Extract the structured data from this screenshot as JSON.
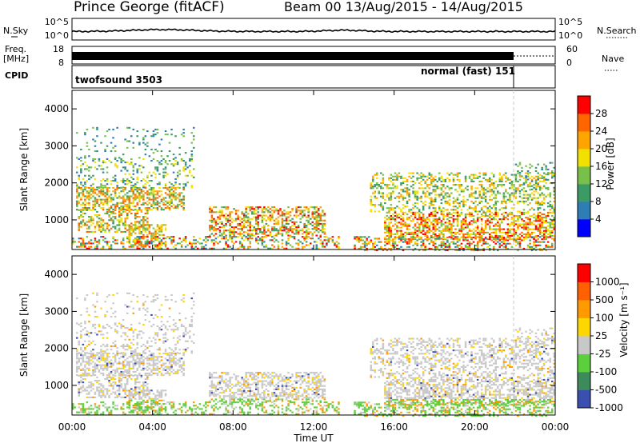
{
  "header": {
    "station": "Prince George (fitACF)",
    "beam_info": "Beam 00  13/Aug/2015 - 14/Aug/2015"
  },
  "strip": {
    "nsky_label": "N.Sky",
    "nsky_ticks": [
      "10^5",
      "10^0"
    ],
    "nsearch_label": "N.Search",
    "nsearch_ticks": [
      "10^5",
      "10^0"
    ],
    "freq_label_1": "Freq.",
    "freq_label_2": "[MHz]",
    "freq_ticks": [
      "18",
      "8"
    ],
    "nave_label": "Nave",
    "nave_ticks": [
      "60",
      "0"
    ],
    "cpid_label": "CPID",
    "cpid_1": "twofsound 3503",
    "cpid_2": "normal (fast) 151"
  },
  "colors": {
    "power": [
      "#0000ff",
      "#2e7db4",
      "#3c9a64",
      "#77c04a",
      "#f2e000",
      "#ffa500",
      "#ff6600",
      "#ff0000"
    ],
    "velocity": [
      "#3b4fb0",
      "#3d8a5a",
      "#5ccf3c",
      "#c8c8c8",
      "#ffd700",
      "#ff9a00",
      "#ff6000",
      "#ff0000"
    ]
  },
  "chart_data": [
    {
      "type": "heatmap",
      "name": "Power",
      "ylabel": "Slant Range [km]",
      "yticks": [
        "4000",
        "3000",
        "2000",
        "1000"
      ],
      "ylim": [
        200,
        4500
      ],
      "xlim": [
        0,
        24
      ],
      "colorbar_label": "Power [dB]",
      "colorbar_ticks": [
        "28",
        "24",
        "20",
        "16",
        "12",
        "8",
        "4"
      ],
      "colorbar_range": [
        0,
        32
      ]
    },
    {
      "type": "heatmap",
      "name": "Velocity",
      "ylabel": "Slant Range [km]",
      "yticks": [
        "4000",
        "3000",
        "2000",
        "1000"
      ],
      "ylim": [
        200,
        4500
      ],
      "xlim": [
        0,
        24
      ],
      "xlabel": "Time UT",
      "xticks": [
        "00:00",
        "04:00",
        "08:00",
        "12:00",
        "16:00",
        "20:00",
        "00:00"
      ],
      "colorbar_label": "Velocity [m s⁻¹]",
      "colorbar_ticks": [
        "1000",
        "500",
        "100",
        "25",
        "-25",
        "-100",
        "-500",
        "-1000"
      ]
    }
  ]
}
